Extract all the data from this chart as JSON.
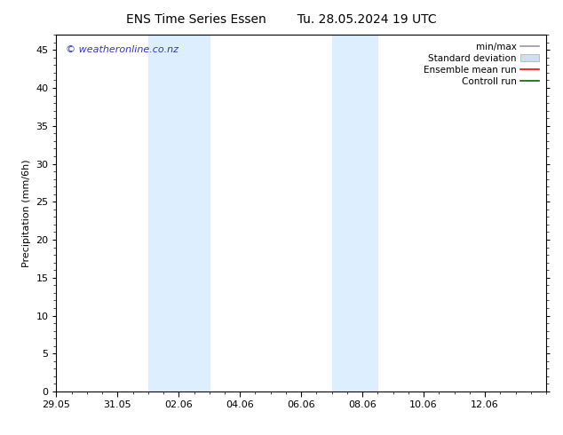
{
  "title_left": "ENS Time Series Essen",
  "title_right": "Tu. 28.05.2024 19 UTC",
  "ylabel": "Precipitation (mm/6h)",
  "ylim": [
    0,
    47
  ],
  "yticks": [
    0,
    5,
    10,
    15,
    20,
    25,
    30,
    35,
    40,
    45
  ],
  "xtick_labels": [
    "29.05",
    "31.05",
    "02.06",
    "04.06",
    "06.06",
    "08.06",
    "10.06",
    "12.06"
  ],
  "xmin": 0,
  "xmax": 16,
  "shaded_bands": [
    {
      "xstart": 3.0,
      "xend": 5.0
    },
    {
      "xstart": 9.0,
      "xend": 10.5
    }
  ],
  "shaded_color": "#ddeeff",
  "bg_color": "#ffffff",
  "watermark": "© weatheronline.co.nz",
  "watermark_color": "#3333cc",
  "legend_items": [
    {
      "label": "min/max",
      "color": "#999999",
      "linestyle": "-",
      "linewidth": 1.2
    },
    {
      "label": "Standard deviation",
      "color": "#cce0f0",
      "linestyle": "-",
      "linewidth": 6
    },
    {
      "label": "Ensemble mean run",
      "color": "#ff0000",
      "linestyle": "-",
      "linewidth": 1.2
    },
    {
      "label": "Controll run",
      "color": "#006600",
      "linestyle": "-",
      "linewidth": 1.2
    }
  ],
  "tick_fontsize": 8,
  "title_fontsize": 10,
  "ylabel_fontsize": 8,
  "watermark_fontsize": 8,
  "legend_fontsize": 7.5
}
